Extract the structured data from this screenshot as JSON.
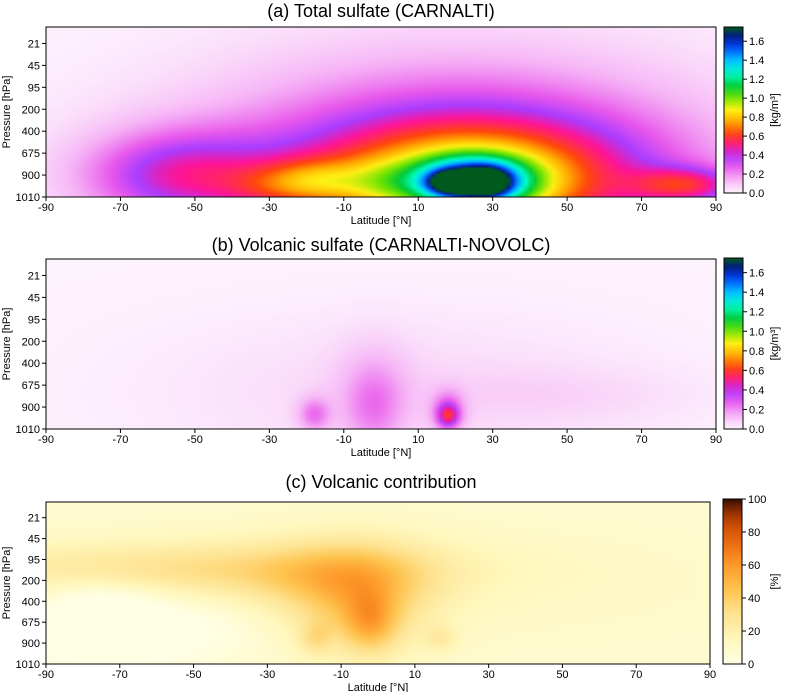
{
  "chart_data": [
    {
      "type": "heatmap",
      "title": "(a) Total sulfate (CARNALTI)",
      "xlabel": "Latitude [°N]",
      "ylabel": "Pressure [hPa]",
      "xticks": [
        "-90",
        "-70",
        "-50",
        "-30",
        "-10",
        "10",
        "30",
        "50",
        "70",
        "90"
      ],
      "yticks": [
        "21",
        "45",
        "95",
        "200",
        "400",
        "675",
        "900",
        "1010"
      ],
      "xlim": [
        -90,
        90
      ],
      "colorbar": {
        "label": "[kg/m³]",
        "ticks": [
          "0.0",
          "0.2",
          "0.4",
          "0.6",
          "0.8",
          "1.0",
          "1.2",
          "1.4",
          "1.6"
        ],
        "range": [
          0,
          1.75
        ],
        "colormap": "gist_ncar_r"
      },
      "field": [
        {
          "lat": 20,
          "level": 6.0,
          "slat": 48,
          "slev": 3.2,
          "value": 0.38
        },
        {
          "lat": -55,
          "level": 6.1,
          "slat": 18,
          "slev": 1.3,
          "value": 0.35
        },
        {
          "lat": 25,
          "level": 6.1,
          "slat": 32,
          "slev": 1.8,
          "value": 0.45
        },
        {
          "lat": 25,
          "level": 6.4,
          "slat": 14,
          "slev": 0.9,
          "value": 0.55
        },
        {
          "lat": 25,
          "level": 6.3,
          "slat": 9,
          "slev": 0.6,
          "value": 0.5
        },
        {
          "lat": 19,
          "level": 6.4,
          "slat": 4,
          "slev": 0.3,
          "value": 0.7
        },
        {
          "lat": 29,
          "level": 6.4,
          "slat": 4,
          "slev": 0.4,
          "value": 0.5
        },
        {
          "lat": -2,
          "level": 6.4,
          "slat": 10,
          "slev": 0.7,
          "value": 0.2
        },
        {
          "lat": -18,
          "level": 6.3,
          "slat": 8,
          "slev": 0.6,
          "value": 0.2
        },
        {
          "lat": -28,
          "level": 6.5,
          "slat": 10,
          "slev": 0.6,
          "value": 0.18
        },
        {
          "lat": 82,
          "level": 6.5,
          "slat": 10,
          "slev": 0.5,
          "value": 0.35
        }
      ]
    },
    {
      "type": "heatmap",
      "title": "(b) Volcanic sulfate (CARNALTI-NOVOLC)",
      "xlabel": "Latitude [°N]",
      "ylabel": "Pressure [hPa]",
      "xticks": [
        "-90",
        "-70",
        "-50",
        "-30",
        "-10",
        "10",
        "30",
        "50",
        "70",
        "90"
      ],
      "yticks": [
        "21",
        "45",
        "95",
        "200",
        "400",
        "675",
        "900",
        "1010"
      ],
      "xlim": [
        -90,
        90
      ],
      "colorbar": {
        "label": "[kg/m³]",
        "ticks": [
          "0.0",
          "0.2",
          "0.4",
          "0.6",
          "0.8",
          "1.0",
          "1.2",
          "1.4",
          "1.6"
        ],
        "range": [
          0,
          1.75
        ],
        "colormap": "gist_ncar_r"
      },
      "field": [
        {
          "lat": 5,
          "level": 5.5,
          "slat": 45,
          "slev": 2.2,
          "value": 0.06
        },
        {
          "lat": 50,
          "level": 5.6,
          "slat": 25,
          "slev": 0.8,
          "value": 0.04
        },
        {
          "lat": -2,
          "level": 5.6,
          "slat": 7,
          "slev": 1.5,
          "value": 0.12
        },
        {
          "lat": -2,
          "level": 6.3,
          "slat": 5,
          "slev": 1.1,
          "value": 0.08
        },
        {
          "lat": -18,
          "level": 6.4,
          "slat": 3,
          "slev": 0.5,
          "value": 0.2
        },
        {
          "lat": 18,
          "level": 6.3,
          "slat": 3,
          "slev": 0.6,
          "value": 0.25
        },
        {
          "lat": 18,
          "level": 6.45,
          "slat": 1.8,
          "slev": 0.3,
          "value": 0.3
        }
      ]
    },
    {
      "type": "heatmap",
      "title": "(c) Volcanic contribution",
      "xlabel": "Latitude [°N]",
      "ylabel": "Pressure [hPa]",
      "xticks": [
        "-90",
        "-70",
        "-50",
        "-30",
        "-10",
        "10",
        "30",
        "50",
        "70",
        "90"
      ],
      "yticks": [
        "21",
        "45",
        "95",
        "200",
        "400",
        "675",
        "900",
        "1010"
      ],
      "xlim": [
        -90,
        90
      ],
      "colorbar": {
        "label": "[%]",
        "ticks": [
          "0",
          "20",
          "40",
          "60",
          "80",
          "100"
        ],
        "range": [
          0,
          100
        ],
        "colormap": "YlOrBr"
      },
      "field": [
        {
          "lat": 0,
          "level": 3.5,
          "slat": 150,
          "slev": 4,
          "value": 12
        },
        {
          "lat": -55,
          "level": 2.9,
          "slat": 45,
          "slev": 0.8,
          "value": 20
        },
        {
          "lat": -10,
          "level": 3.3,
          "slat": 18,
          "slev": 1.2,
          "value": 22
        },
        {
          "lat": -5,
          "level": 4.6,
          "slat": 12,
          "slev": 1.6,
          "value": 22
        },
        {
          "lat": -2,
          "level": 5.2,
          "slat": 5,
          "slev": 0.9,
          "value": 25
        },
        {
          "lat": -17,
          "level": 5.9,
          "slat": 3,
          "slev": 0.5,
          "value": 15
        },
        {
          "lat": 17,
          "level": 5.9,
          "slat": 3,
          "slev": 0.4,
          "value": 12
        },
        {
          "lat": -75,
          "level": 5.2,
          "slat": 12,
          "slev": 1.2,
          "value": -25
        },
        {
          "lat": -50,
          "level": 5.5,
          "slat": 15,
          "slev": 1,
          "value": -10
        }
      ]
    }
  ]
}
